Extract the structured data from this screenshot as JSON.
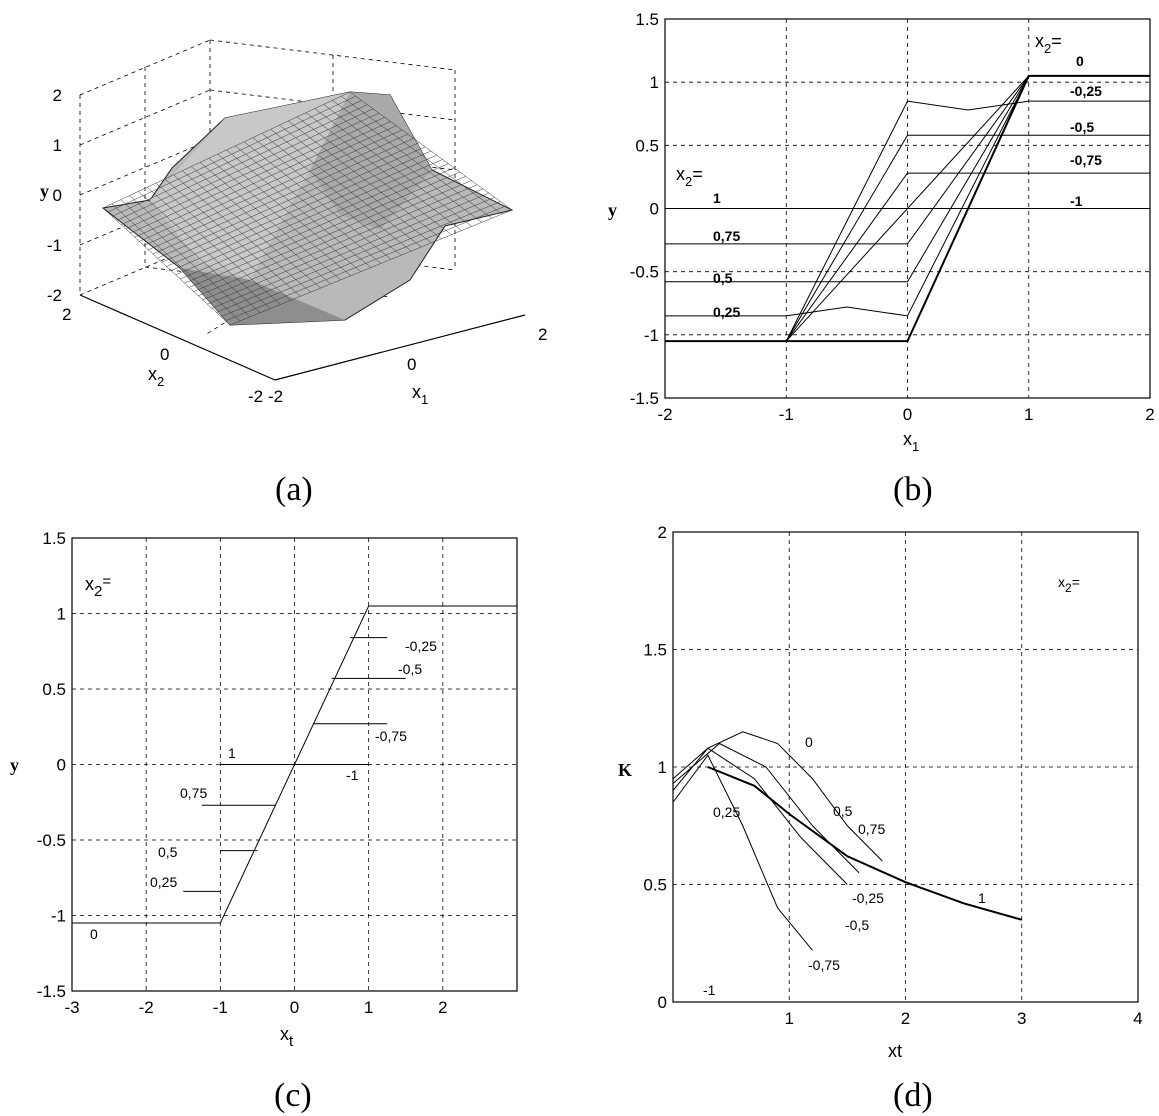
{
  "captions": [
    "(a)",
    "(b)",
    "(c)",
    "(d)"
  ],
  "chart_data": [
    {
      "id": "a",
      "type": "surface",
      "xlabel_main": "x",
      "xlabel_sub": "1",
      "ylabel_main": "x",
      "ylabel_sub": "2",
      "zlabel": "y",
      "z_ticks": [
        "2",
        "1",
        "0",
        "-1",
        "-2"
      ],
      "x1_ticks": [
        "-2",
        "0",
        "2"
      ],
      "x2_ticks": [
        "2",
        "0",
        "-2"
      ],
      "xlim": [
        -2,
        2
      ],
      "ylim": [
        -2,
        2
      ],
      "zlim": [
        -2,
        2
      ]
    },
    {
      "id": "b",
      "type": "line",
      "xlabel_main": "x",
      "xlabel_sub": "1",
      "ylabel": "y",
      "xlim": [
        -2,
        2
      ],
      "ylim": [
        -1.5,
        1.5
      ],
      "x_ticks": [
        "-2",
        "-1",
        "0",
        "1",
        "2"
      ],
      "y_ticks": [
        "1.5",
        "1",
        "0.5",
        "0",
        "-0.5",
        "-1",
        "-1.5"
      ],
      "grid": true,
      "legend_title_main": "x",
      "legend_title_sub": "2",
      "legend_title_suffix": "=",
      "labels_right": [
        "0",
        "-0,25",
        "-0,5",
        "-0,75",
        "-1"
      ],
      "labels_left": [
        "1",
        "0,75",
        "0,5",
        "0,25"
      ],
      "series": [
        {
          "label": "1",
          "x": [
            -2,
            -1,
            0,
            1,
            2
          ],
          "y": [
            0,
            0,
            0,
            1.05,
            1.05
          ]
        },
        {
          "label": "0,75",
          "x": [
            -2,
            -1,
            0,
            1,
            2
          ],
          "y": [
            -0.28,
            -0.28,
            -0.28,
            1.05,
            1.05
          ]
        },
        {
          "label": "0,5",
          "x": [
            -2,
            -1,
            0,
            1,
            2
          ],
          "y": [
            -0.58,
            -0.58,
            -0.58,
            1.05,
            1.05
          ]
        },
        {
          "label": "0,25",
          "x": [
            -2,
            -1,
            -0.5,
            0,
            1,
            2
          ],
          "y": [
            -0.85,
            -0.85,
            -0.78,
            -0.85,
            1.05,
            1.05
          ]
        },
        {
          "label": "0",
          "x": [
            -2,
            -1,
            0,
            1,
            2
          ],
          "y": [
            -1.05,
            -1.05,
            -1.05,
            1.05,
            1.05
          ]
        },
        {
          "label": "-0,25",
          "x": [
            -2,
            -1,
            0,
            0.5,
            1,
            2
          ],
          "y": [
            -1.05,
            -1.05,
            0.85,
            0.78,
            0.85,
            0.85
          ]
        },
        {
          "label": "-0,5",
          "x": [
            -2,
            -1,
            0,
            1,
            2
          ],
          "y": [
            -1.05,
            -1.05,
            0.58,
            0.58,
            0.58
          ]
        },
        {
          "label": "-0,75",
          "x": [
            -2,
            -1,
            0,
            1,
            2
          ],
          "y": [
            -1.05,
            -1.05,
            0.28,
            0.28,
            0.28
          ]
        },
        {
          "label": "-1",
          "x": [
            -2,
            -1,
            0,
            1,
            2
          ],
          "y": [
            -1.05,
            -1.05,
            0,
            0,
            0
          ]
        }
      ]
    },
    {
      "id": "c",
      "type": "line",
      "xlabel_main": "x",
      "xlabel_sub": "t",
      "ylabel": "y",
      "xlim": [
        -3,
        3
      ],
      "ylim": [
        -1.5,
        1.5
      ],
      "x_ticks": [
        "-3",
        "-2",
        "-1",
        "0",
        "1",
        "2"
      ],
      "y_ticks": [
        "1.5",
        "1",
        "0.5",
        "0",
        "-0.5",
        "-1",
        "-1.5"
      ],
      "grid": true,
      "legend_title_main": "x",
      "legend_title_sub": "2",
      "legend_title_suffix": "=",
      "labels": [
        "-0,25",
        "-0,5",
        "-0,75",
        "1",
        "-1",
        "0,75",
        "0,5",
        "0,25",
        "0"
      ],
      "series": [
        {
          "label": "0",
          "x": [
            -3,
            -1,
            1,
            3
          ],
          "y": [
            -1.05,
            -1.05,
            1.05,
            1.05
          ]
        },
        {
          "label": "1",
          "x": [
            -1,
            1
          ],
          "y": [
            0,
            0
          ]
        },
        {
          "label": "-1",
          "x": [
            0,
            1
          ],
          "y": [
            0,
            0
          ]
        },
        {
          "label": "0,75",
          "x": [
            -1.25,
            -0.25
          ],
          "y": [
            -0.27,
            -0.27
          ]
        },
        {
          "label": "0,5",
          "x": [
            -1.0,
            -0.5
          ],
          "y": [
            -0.57,
            -0.57
          ]
        },
        {
          "label": "0,25",
          "x": [
            -1.5,
            -1.0
          ],
          "y": [
            -0.84,
            -0.84
          ]
        },
        {
          "label": "-0,25",
          "x": [
            0.75,
            1.25
          ],
          "y": [
            0.84,
            0.84
          ]
        },
        {
          "label": "-0,5",
          "x": [
            0.5,
            1.5
          ],
          "y": [
            0.57,
            0.57
          ]
        },
        {
          "label": "-0,75",
          "x": [
            0.25,
            1.25
          ],
          "y": [
            0.27,
            0.27
          ]
        }
      ]
    },
    {
      "id": "d",
      "type": "line",
      "xlabel": "xt",
      "ylabel": "K",
      "xlim": [
        0,
        4
      ],
      "ylim": [
        0,
        2
      ],
      "x_ticks": [
        "1",
        "2",
        "3",
        "4"
      ],
      "y_ticks": [
        "2",
        "1.5",
        "1",
        "0.5",
        "0"
      ],
      "grid": true,
      "legend_title_main": "x",
      "legend_title_sub": "2",
      "legend_title_suffix": "=",
      "labels": [
        "0",
        "0,25",
        "0,5",
        "0,75",
        "-0,25",
        "-0,5",
        "-0,75",
        "1",
        "-1"
      ],
      "series": [
        {
          "label": "0",
          "x": [
            0,
            0.3,
            0.6,
            0.9,
            1.2,
            1.5,
            1.8
          ],
          "y": [
            0.95,
            1.08,
            1.15,
            1.1,
            0.95,
            0.75,
            0.6
          ]
        },
        {
          "label": "1",
          "x": [
            0.3,
            0.7,
            1.0,
            1.5,
            2.0,
            2.5,
            3.0
          ],
          "y": [
            1.0,
            0.92,
            0.8,
            0.62,
            0.51,
            0.42,
            0.35
          ]
        },
        {
          "label": "-0,25",
          "x": [
            0,
            0.4,
            0.8,
            1.2,
            1.6
          ],
          "y": [
            0.93,
            1.1,
            1.0,
            0.75,
            0.55
          ]
        },
        {
          "label": "-0,5",
          "x": [
            0,
            0.3,
            0.7,
            1.1,
            1.5
          ],
          "y": [
            0.9,
            1.08,
            0.95,
            0.7,
            0.5
          ]
        },
        {
          "label": "-0,75",
          "x": [
            0,
            0.3,
            0.6,
            0.9,
            1.2
          ],
          "y": [
            0.85,
            1.05,
            0.75,
            0.4,
            0.22
          ]
        }
      ]
    }
  ]
}
